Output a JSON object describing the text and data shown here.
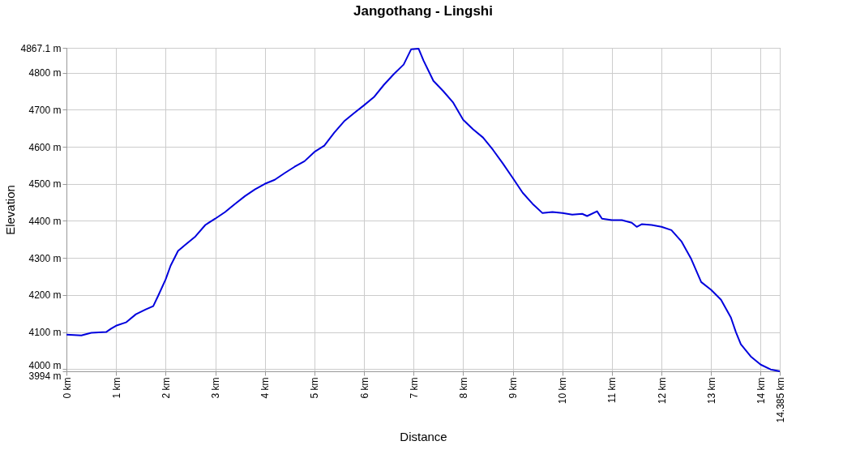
{
  "chart_data": {
    "type": "line",
    "title": "Jangothang - Lingshi",
    "xlabel": "Distance",
    "ylabel": "Elevation",
    "x": [
      0,
      0.3,
      0.5,
      0.8,
      0.9,
      1.0,
      1.2,
      1.4,
      1.6,
      1.75,
      1.85,
      2.0,
      2.1,
      2.25,
      2.4,
      2.6,
      2.8,
      3.0,
      3.2,
      3.4,
      3.6,
      3.8,
      4.0,
      4.2,
      4.4,
      4.6,
      4.8,
      5.0,
      5.2,
      5.4,
      5.6,
      5.8,
      6.0,
      6.2,
      6.4,
      6.6,
      6.8,
      6.95,
      7.1,
      7.2,
      7.4,
      7.6,
      7.8,
      8.0,
      8.2,
      8.4,
      8.6,
      8.8,
      9.0,
      9.2,
      9.4,
      9.6,
      9.8,
      10.0,
      10.2,
      10.4,
      10.5,
      10.7,
      10.8,
      11.0,
      11.2,
      11.4,
      11.5,
      11.6,
      11.8,
      12.0,
      12.2,
      12.4,
      12.6,
      12.8,
      13.0,
      13.2,
      13.4,
      13.5,
      13.6,
      13.8,
      14.0,
      14.2,
      14.385
    ],
    "series": [
      {
        "color": "#0000dd",
        "values": [
          4093,
          4091,
          4098,
          4100,
          4109,
          4117,
          4126,
          4148,
          4161,
          4170,
          4198,
          4242,
          4279,
          4319,
          4336,
          4358,
          4389,
          4406,
          4424,
          4446,
          4467,
          4485,
          4500,
          4511,
          4529,
          4546,
          4561,
          4586,
          4603,
          4638,
          4669,
          4691,
          4712,
          4734,
          4767,
          4796,
          4822,
          4863,
          4865,
          4833,
          4778,
          4750,
          4719,
          4673,
          4647,
          4625,
          4592,
          4555,
          4516,
          4476,
          4446,
          4421,
          4424,
          4421,
          4417,
          4419,
          4413,
          4426,
          4406,
          4402,
          4402,
          4395,
          4384,
          4391,
          4389,
          4384,
          4375,
          4345,
          4297,
          4235,
          4214,
          4187,
          4139,
          4100,
          4067,
          4034,
          4012,
          3999,
          3994
        ]
      }
    ],
    "xlim": [
      0,
      14.385
    ],
    "xticks": [
      {
        "value": 0,
        "label": "0 km"
      },
      {
        "value": 1,
        "label": "1 km"
      },
      {
        "value": 2,
        "label": "2 km"
      },
      {
        "value": 3,
        "label": "3 km"
      },
      {
        "value": 4,
        "label": "4 km"
      },
      {
        "value": 5,
        "label": "5 km"
      },
      {
        "value": 6,
        "label": "6 km"
      },
      {
        "value": 7,
        "label": "7 km"
      },
      {
        "value": 8,
        "label": "8 km"
      },
      {
        "value": 9,
        "label": "9 km"
      },
      {
        "value": 10,
        "label": "10 km"
      },
      {
        "value": 11,
        "label": "11 km"
      },
      {
        "value": 12,
        "label": "12 km"
      },
      {
        "value": 13,
        "label": "13 km"
      },
      {
        "value": 14,
        "label": "14 km"
      },
      {
        "value": 14.385,
        "label": "14.385 km"
      }
    ],
    "ylim": [
      3994,
      4867.1
    ],
    "yticks": [
      {
        "value": 3994,
        "label": "3994 m"
      },
      {
        "value": 4000,
        "label": "4000 m"
      },
      {
        "value": 4100,
        "label": "4100 m"
      },
      {
        "value": 4200,
        "label": "4200 m"
      },
      {
        "value": 4300,
        "label": "4300 m"
      },
      {
        "value": 4400,
        "label": "4400 m"
      },
      {
        "value": 4500,
        "label": "4500 m"
      },
      {
        "value": 4600,
        "label": "4600 m"
      },
      {
        "value": 4700,
        "label": "4700 m"
      },
      {
        "value": 4800,
        "label": "4800 m"
      },
      {
        "value": 4867.1,
        "label": "4867.1 m"
      }
    ],
    "grid": true,
    "marker": "none",
    "line_style": "solid"
  }
}
